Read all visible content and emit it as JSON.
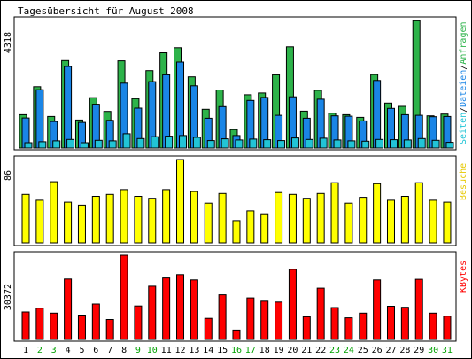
{
  "title": "Tagesübersicht für August 2008",
  "days": [
    "1",
    "2",
    "3",
    "4",
    "5",
    "6",
    "7",
    "8",
    "9",
    "10",
    "11",
    "12",
    "13",
    "14",
    "15",
    "16",
    "17",
    "18",
    "19",
    "20",
    "21",
    "22",
    "23",
    "24",
    "25",
    "26",
    "27",
    "28",
    "29",
    "30",
    "31"
  ],
  "weekend_days": [
    "2",
    "3",
    "9",
    "10",
    "16",
    "17",
    "23",
    "24",
    "30",
    "31"
  ],
  "day_color_weekday": "#000000",
  "day_color_weekend": "#00a000",
  "colors": {
    "anfragen": "#2db34a",
    "dateien": "#1a85e6",
    "seiten": "#22c4d6",
    "besuche": "#ffff00",
    "kbytes": "#ff0000",
    "border": "#000000"
  },
  "legend": {
    "seiten": "Seiten",
    "dateien": "Dateien",
    "anfragen": "Anfragen",
    "besuche": "Besuche",
    "kbytes": "KBytes"
  },
  "chart_data": [
    {
      "type": "bar",
      "ymax_label": "4318",
      "ylim": [
        0,
        4318
      ],
      "categories": [
        "1",
        "2",
        "3",
        "4",
        "5",
        "6",
        "7",
        "8",
        "9",
        "10",
        "11",
        "12",
        "13",
        "14",
        "15",
        "16",
        "17",
        "18",
        "19",
        "20",
        "21",
        "22",
        "23",
        "24",
        "25",
        "26",
        "27",
        "28",
        "29",
        "30",
        "31"
      ],
      "series": [
        {
          "name": "Anfragen",
          "values": [
            1120,
            2060,
            1060,
            2940,
            940,
            1690,
            1230,
            2930,
            1660,
            2600,
            3200,
            3370,
            2390,
            1300,
            1950,
            620,
            1790,
            1850,
            2460,
            3400,
            1240,
            1940,
            1170,
            1120,
            1030,
            2470,
            1510,
            1400,
            4280,
            1080,
            1140
          ]
        },
        {
          "name": "Dateien",
          "values": [
            1010,
            1960,
            890,
            2740,
            860,
            1470,
            930,
            2180,
            1340,
            2230,
            2460,
            2890,
            2090,
            1000,
            1390,
            420,
            1600,
            1700,
            1100,
            1720,
            1000,
            1640,
            1080,
            1070,
            910,
            2270,
            1330,
            1120,
            1100,
            1050,
            1060
          ]
        },
        {
          "name": "Seiten",
          "values": [
            180,
            210,
            240,
            290,
            180,
            260,
            240,
            480,
            320,
            380,
            400,
            420,
            360,
            250,
            310,
            270,
            300,
            280,
            250,
            340,
            290,
            330,
            270,
            240,
            230,
            290,
            280,
            270,
            320,
            260,
            190
          ]
        }
      ]
    },
    {
      "type": "bar",
      "ymax_label": "86",
      "ylim": [
        0,
        86
      ],
      "categories": [
        "1",
        "2",
        "3",
        "4",
        "5",
        "6",
        "7",
        "8",
        "9",
        "10",
        "11",
        "12",
        "13",
        "14",
        "15",
        "16",
        "17",
        "18",
        "19",
        "20",
        "21",
        "22",
        "23",
        "24",
        "25",
        "26",
        "27",
        "28",
        "29",
        "30",
        "31"
      ],
      "series": [
        {
          "name": "Besuche",
          "values": [
            50,
            44,
            63,
            42,
            39,
            48,
            50,
            55,
            48,
            46,
            55,
            86,
            53,
            41,
            51,
            23,
            33,
            30,
            52,
            50,
            46,
            51,
            62,
            41,
            47,
            61,
            44,
            48,
            62,
            44,
            42
          ]
        }
      ]
    },
    {
      "type": "bar",
      "ymax_label": "30372",
      "ylim": [
        0,
        30372
      ],
      "categories": [
        "1",
        "2",
        "3",
        "4",
        "5",
        "6",
        "7",
        "8",
        "9",
        "10",
        "11",
        "12",
        "13",
        "14",
        "15",
        "16",
        "17",
        "18",
        "19",
        "20",
        "21",
        "22",
        "23",
        "24",
        "25",
        "26",
        "27",
        "28",
        "29",
        "30",
        "31"
      ],
      "series": [
        {
          "name": "KBytes",
          "values": [
            9900,
            11300,
            9500,
            21800,
            8800,
            12800,
            7200,
            30372,
            12100,
            19200,
            22200,
            23400,
            21500,
            7600,
            16100,
            3400,
            15000,
            13800,
            13500,
            25300,
            8200,
            18500,
            11500,
            7800,
            9500,
            21500,
            12000,
            11600,
            21700,
            9500,
            8400
          ]
        }
      ]
    }
  ]
}
